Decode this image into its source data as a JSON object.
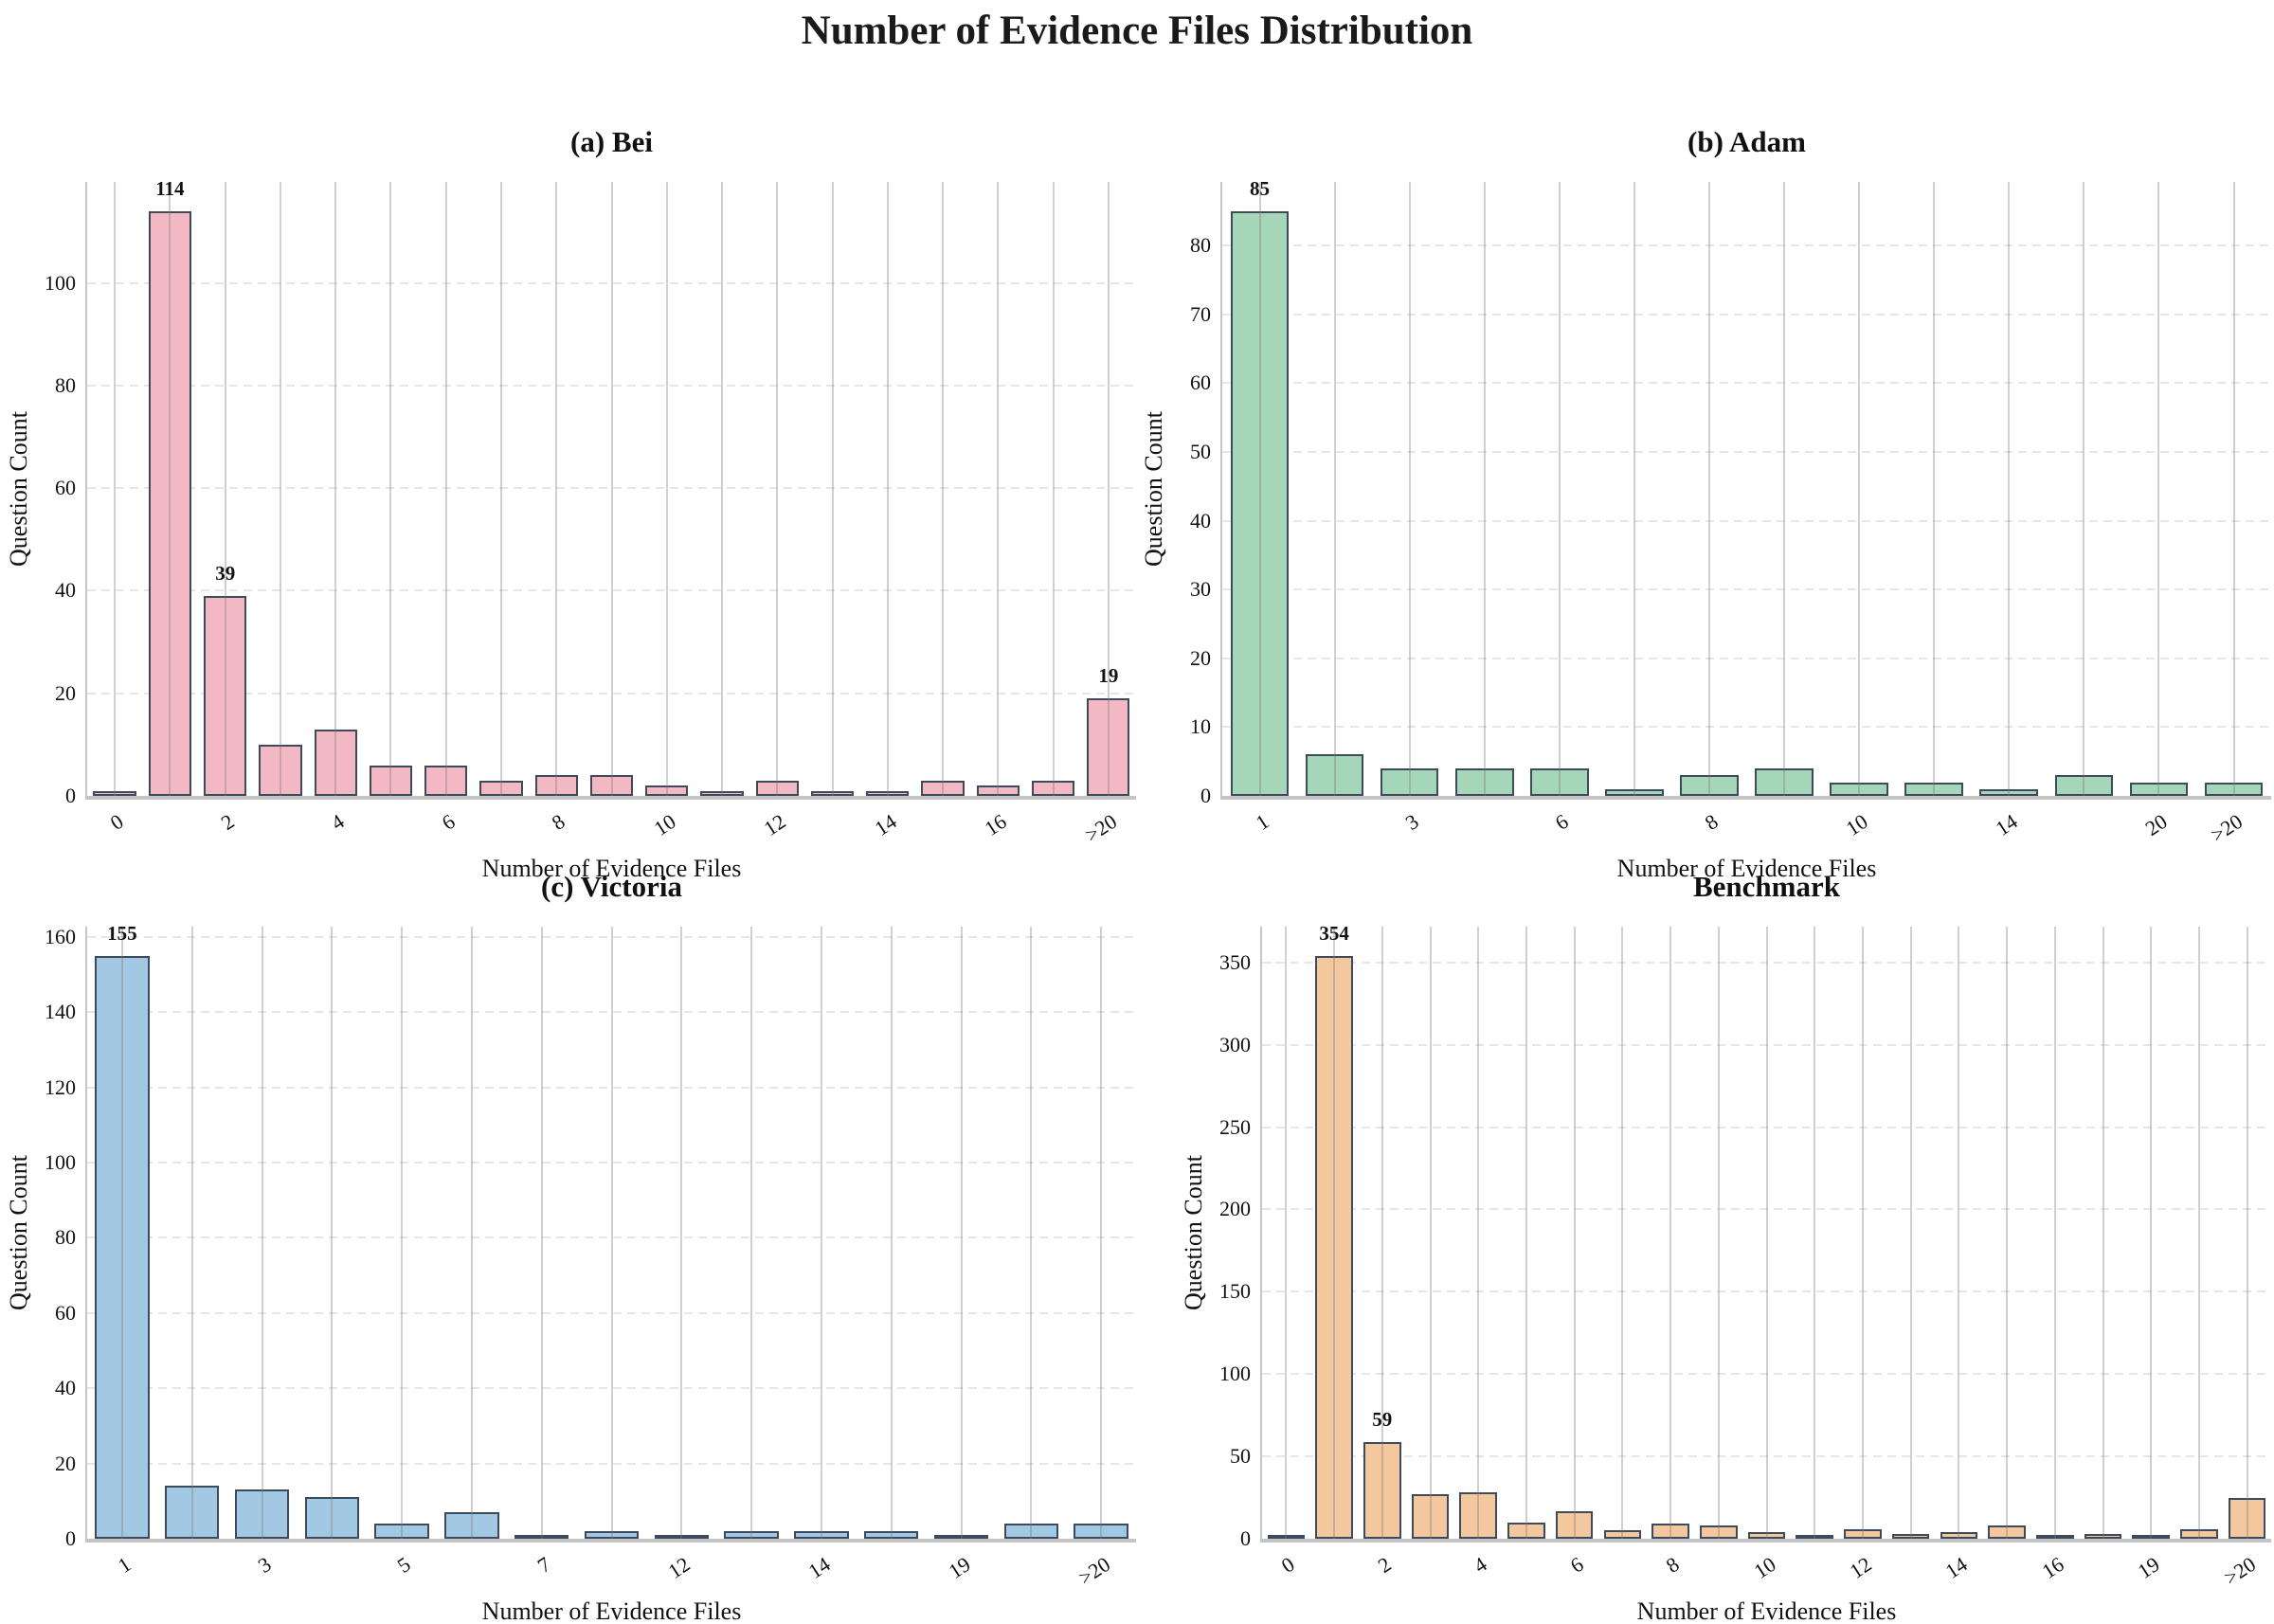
{
  "main_title": "Number of Evidence Files Distribution",
  "style": {
    "edge_color": "#3d4a5c",
    "vgrid_color": "#c9c9c9",
    "hgrid_color": "#e6e6e6",
    "spine_color": "#c4c4c4",
    "text_color": "#111111"
  },
  "chart_data": [
    {
      "id": "bei",
      "type": "bar",
      "title": "(a) Bei",
      "xlabel": "Number of Evidence Files",
      "ylabel": "Question Count",
      "bar_color": "#f2b9c5",
      "categories": [
        "0",
        "1",
        "2",
        "3",
        "4",
        "5",
        "6",
        "7",
        "8",
        "9",
        "10",
        "11",
        "12",
        "13",
        "14",
        "15",
        "16",
        "17",
        ">20"
      ],
      "values": [
        1,
        114,
        39,
        10,
        13,
        6,
        6,
        3,
        4,
        4,
        2,
        1,
        3,
        1,
        1,
        3,
        2,
        3,
        19
      ],
      "yticks": [
        0,
        20,
        40,
        60,
        80,
        100
      ],
      "ylim": [
        0,
        119.7
      ],
      "grid": "both",
      "xticks": [
        {
          "i": 0,
          "label": "0"
        },
        {
          "i": 2,
          "label": "2"
        },
        {
          "i": 4,
          "label": "4"
        },
        {
          "i": 6,
          "label": "6"
        },
        {
          "i": 8,
          "label": "8"
        },
        {
          "i": 10,
          "label": "10"
        },
        {
          "i": 12,
          "label": "12"
        },
        {
          "i": 14,
          "label": "14"
        },
        {
          "i": 16,
          "label": "16"
        },
        {
          "i": 18,
          "label": ">20"
        }
      ],
      "bar_value_labels": [
        {
          "i": 1,
          "text": "114"
        },
        {
          "i": 2,
          "text": "39"
        },
        {
          "i": 18,
          "text": "19"
        }
      ]
    },
    {
      "id": "adam",
      "type": "bar",
      "title": "(b) Adam",
      "xlabel": "Number of Evidence Files",
      "ylabel": "Question Count",
      "bar_color": "#a5d6b7",
      "categories": [
        "1",
        "2",
        "3",
        "4",
        "6",
        "7",
        "8",
        "9",
        "10",
        "12",
        "14",
        "15",
        "20",
        ">20"
      ],
      "values": [
        85,
        6,
        4,
        4,
        4,
        1,
        3,
        4,
        2,
        2,
        1,
        3,
        2,
        2
      ],
      "yticks": [
        0,
        10,
        20,
        30,
        40,
        50,
        60,
        70,
        80
      ],
      "ylim": [
        0,
        89.25
      ],
      "grid": "both",
      "xticks": [
        {
          "i": 0,
          "label": "1"
        },
        {
          "i": 2,
          "label": "3"
        },
        {
          "i": 4,
          "label": "6"
        },
        {
          "i": 6,
          "label": "8"
        },
        {
          "i": 8,
          "label": "10"
        },
        {
          "i": 10,
          "label": "14"
        },
        {
          "i": 12,
          "label": "20"
        },
        {
          "i": 13,
          "label": ">20"
        }
      ],
      "bar_value_labels": [
        {
          "i": 0,
          "text": "85"
        }
      ]
    },
    {
      "id": "victoria",
      "type": "bar",
      "title": "(c) Victoria",
      "xlabel": "Number of Evidence Files",
      "ylabel": "Question Count",
      "bar_color": "#a3c8e3",
      "categories": [
        "1",
        "2",
        "3",
        "4",
        "5",
        "6",
        "7",
        "8",
        "12",
        "13",
        "14",
        "15",
        "19",
        "20",
        ">20"
      ],
      "values": [
        155,
        14,
        13,
        11,
        4,
        7,
        1,
        2,
        1,
        2,
        2,
        2,
        1,
        4,
        4
      ],
      "yticks": [
        0,
        20,
        40,
        60,
        80,
        100,
        120,
        140,
        160
      ],
      "ylim": [
        0,
        162.75
      ],
      "grid": "both",
      "xticks": [
        {
          "i": 0,
          "label": "1"
        },
        {
          "i": 2,
          "label": "3"
        },
        {
          "i": 4,
          "label": "5"
        },
        {
          "i": 6,
          "label": "7"
        },
        {
          "i": 8,
          "label": "12"
        },
        {
          "i": 10,
          "label": "14"
        },
        {
          "i": 12,
          "label": "19"
        },
        {
          "i": 14,
          "label": ">20"
        }
      ],
      "bar_value_labels": [
        {
          "i": 0,
          "text": "155"
        }
      ]
    },
    {
      "id": "benchmark",
      "type": "bar",
      "title": "Benchmark",
      "xlabel": "Number of Evidence Files",
      "ylabel": "Question Count",
      "bar_color": "#f3c89f",
      "categories": [
        "0",
        "1",
        "2",
        "3",
        "4",
        "5",
        "6",
        "7",
        "8",
        "9",
        "10",
        "11",
        "12",
        "13",
        "14",
        "15",
        "16",
        "17",
        "19",
        "20",
        ">20"
      ],
      "values": [
        1,
        354,
        59,
        27,
        28,
        10,
        17,
        5,
        9,
        8,
        4,
        1,
        6,
        3,
        4,
        8,
        2,
        3,
        1,
        6,
        25
      ],
      "yticks": [
        0,
        50,
        100,
        150,
        200,
        250,
        300,
        350
      ],
      "ylim": [
        0,
        371.7
      ],
      "grid": "both",
      "xticks": [
        {
          "i": 0,
          "label": "0"
        },
        {
          "i": 2,
          "label": "2"
        },
        {
          "i": 4,
          "label": "4"
        },
        {
          "i": 6,
          "label": "6"
        },
        {
          "i": 8,
          "label": "8"
        },
        {
          "i": 10,
          "label": "10"
        },
        {
          "i": 12,
          "label": "12"
        },
        {
          "i": 14,
          "label": "14"
        },
        {
          "i": 16,
          "label": "16"
        },
        {
          "i": 18,
          "label": "19"
        },
        {
          "i": 20,
          "label": ">20"
        }
      ],
      "bar_value_labels": [
        {
          "i": 1,
          "text": "354"
        },
        {
          "i": 2,
          "text": "59"
        }
      ]
    }
  ]
}
